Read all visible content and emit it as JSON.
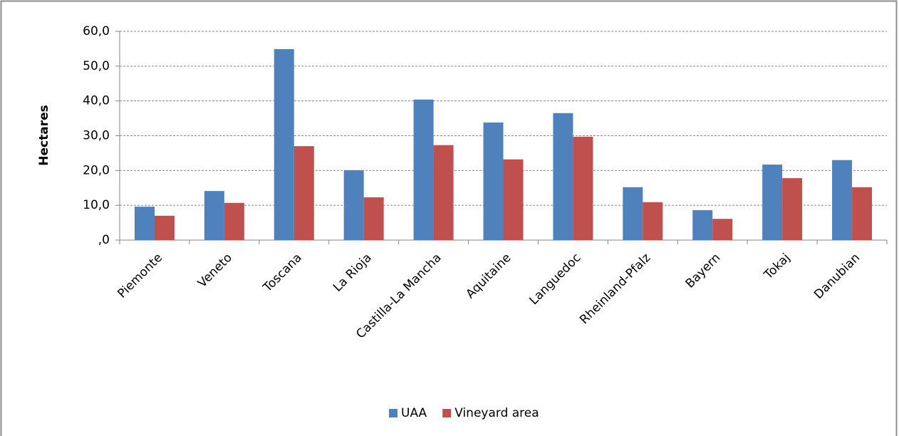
{
  "chart_data": {
    "type": "bar",
    "ylabel": "Hectares",
    "categories": [
      "Piemonte",
      "Veneto",
      "Toscana",
      "La Rioja",
      "Castilla-La Mancha",
      "Aquitaine",
      "Languedoc",
      "Rheinland-Pfalz",
      "Bayern",
      "Tokaj",
      "Danubian"
    ],
    "series": [
      {
        "name": "UAA",
        "color": "#4f81bd",
        "values": [
          9.6,
          14.1,
          54.9,
          20.1,
          40.4,
          33.8,
          36.5,
          15.2,
          8.6,
          21.7,
          23.0
        ]
      },
      {
        "name": "Vineyard area",
        "color": "#c0504d",
        "values": [
          7.0,
          10.7,
          27.0,
          12.3,
          27.3,
          23.2,
          29.7,
          10.9,
          6.1,
          17.8,
          15.2
        ]
      }
    ],
    "ylim": [
      0,
      60
    ],
    "yticks": [
      {
        "value": 0,
        "label": ",0"
      },
      {
        "value": 10,
        "label": "10,0"
      },
      {
        "value": 20,
        "label": "20,0"
      },
      {
        "value": 30,
        "label": "30,0"
      },
      {
        "value": 40,
        "label": "40,0"
      },
      {
        "value": 50,
        "label": "50,0"
      },
      {
        "value": 60,
        "label": "60,0"
      }
    ],
    "grid": true,
    "legend": "bottom"
  }
}
